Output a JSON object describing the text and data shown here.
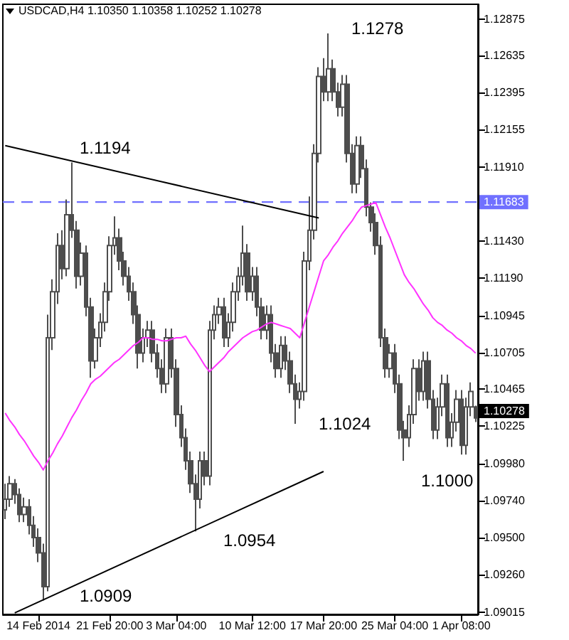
{
  "chart_data": {
    "type": "candlestick",
    "title": "USDCAD,H4 1.10350 1.10358 1.10252 1.10278",
    "categories": [
      null,
      null,
      null,
      null,
      null,
      null,
      null,
      "14 Feb 2014",
      null,
      null,
      null,
      null,
      null,
      null,
      null,
      null,
      null,
      null,
      null,
      null,
      null,
      null,
      "21 Feb 20:00",
      null,
      null,
      null,
      null,
      null,
      null,
      null,
      null,
      null,
      null,
      null,
      null,
      null,
      "3 Mar 04:00",
      null,
      null,
      null,
      null,
      null,
      null,
      null,
      null,
      null,
      null,
      null,
      null,
      null,
      null,
      null,
      "10 Mar 12:00",
      null,
      null,
      null,
      null,
      null,
      null,
      null,
      null,
      null,
      null,
      null,
      null,
      null,
      null,
      "17 Mar 20:00",
      null,
      null,
      null,
      null,
      null,
      null,
      null,
      null,
      null,
      null,
      null,
      null,
      null,
      null,
      "25 Mar 04:00",
      null,
      null,
      null,
      null,
      null,
      null,
      null,
      null,
      null,
      null,
      null,
      null,
      null,
      "1 Apr 08:00",
      null,
      null,
      null
    ],
    "ylim": [
      1.09,
      1.1297
    ],
    "yticks": [
      {
        "value": 1.09015,
        "label": "1.09015"
      },
      {
        "value": 1.0926,
        "label": "1.09260"
      },
      {
        "value": 1.095,
        "label": "1.09500"
      },
      {
        "value": 1.0974,
        "label": "1.09740"
      },
      {
        "value": 1.0998,
        "label": "1.09980"
      },
      {
        "value": 1.10225,
        "label": "1.10225"
      },
      {
        "value": 1.10465,
        "label": "1.10465"
      },
      {
        "value": 1.10705,
        "label": "1.10705"
      },
      {
        "value": 1.10945,
        "label": "1.10945"
      },
      {
        "value": 1.1119,
        "label": "1.11190"
      },
      {
        "value": 1.1143,
        "label": "1.11430"
      },
      {
        "value": 1.1191,
        "label": "1.11910"
      },
      {
        "value": 1.12155,
        "label": "1.12155"
      },
      {
        "value": 1.12395,
        "label": "1.12395"
      },
      {
        "value": 1.12635,
        "label": "1.12635"
      },
      {
        "value": 1.12875,
        "label": "1.12875"
      }
    ],
    "color": "#4d4d4d",
    "ohlc": [
      [
        1.0968,
        1.0985,
        1.0962,
        1.0975
      ],
      [
        1.0975,
        1.099,
        1.097,
        1.0985
      ],
      [
        1.0985,
        1.0988,
        1.0972,
        1.0978
      ],
      [
        1.0978,
        1.0982,
        1.096,
        1.0965
      ],
      [
        1.0965,
        1.0976,
        1.096,
        1.097
      ],
      [
        1.097,
        1.0975,
        1.0952,
        1.0958
      ],
      [
        1.0958,
        1.0964,
        1.0944,
        1.095
      ],
      [
        1.095,
        1.0956,
        1.0934,
        1.094
      ],
      [
        1.094,
        1.0946,
        1.0909,
        1.0918
      ],
      [
        1.0918,
        1.1095,
        1.0915,
        1.108
      ],
      [
        1.108,
        1.1118,
        1.1072,
        1.111
      ],
      [
        1.111,
        1.1148,
        1.1102,
        1.114
      ],
      [
        1.114,
        1.115,
        1.1118,
        1.1125
      ],
      [
        1.1125,
        1.117,
        1.112,
        1.116
      ],
      [
        1.116,
        1.1194,
        1.1145,
        1.115
      ],
      [
        1.115,
        1.1156,
        1.1112,
        1.112
      ],
      [
        1.112,
        1.1142,
        1.1114,
        1.1135
      ],
      [
        1.1135,
        1.114,
        1.1094,
        1.11
      ],
      [
        1.11,
        1.1106,
        1.1054,
        1.1065
      ],
      [
        1.1065,
        1.1086,
        1.106,
        1.108
      ],
      [
        1.108,
        1.1096,
        1.1074,
        1.109
      ],
      [
        1.109,
        1.1116,
        1.1084,
        1.111
      ],
      [
        1.111,
        1.1146,
        1.1104,
        1.114
      ],
      [
        1.114,
        1.1159,
        1.1134,
        1.1145
      ],
      [
        1.1145,
        1.1151,
        1.1124,
        1.113
      ],
      [
        1.113,
        1.1136,
        1.1114,
        1.112
      ],
      [
        1.112,
        1.1126,
        1.1104,
        1.111
      ],
      [
        1.111,
        1.1116,
        1.1089,
        1.1095
      ],
      [
        1.1095,
        1.1101,
        1.106,
        1.107
      ],
      [
        1.107,
        1.1086,
        1.1064,
        1.108
      ],
      [
        1.108,
        1.1091,
        1.1074,
        1.1085
      ],
      [
        1.1085,
        1.1091,
        1.1064,
        1.107
      ],
      [
        1.107,
        1.1076,
        1.1054,
        1.106
      ],
      [
        1.106,
        1.1066,
        1.1044,
        1.105
      ],
      [
        1.105,
        1.1086,
        1.1044,
        1.108
      ],
      [
        1.108,
        1.1086,
        1.1054,
        1.106
      ],
      [
        1.106,
        1.1066,
        1.1022,
        1.103
      ],
      [
        1.103,
        1.1036,
        1.1009,
        1.1015
      ],
      [
        1.1015,
        1.1021,
        1.0994,
        1.1
      ],
      [
        1.1,
        1.1006,
        1.0979,
        1.0985
      ],
      [
        1.0985,
        1.0991,
        1.0954,
        1.0975
      ],
      [
        1.0975,
        1.1006,
        1.0969,
        1.1
      ],
      [
        1.1,
        1.1006,
        1.0984,
        1.099
      ],
      [
        1.099,
        1.1091,
        1.0984,
        1.1085
      ],
      [
        1.1085,
        1.1101,
        1.1079,
        1.1095
      ],
      [
        1.1095,
        1.1106,
        1.1089,
        1.11
      ],
      [
        1.11,
        1.1106,
        1.1074,
        1.108
      ],
      [
        1.108,
        1.1096,
        1.1074,
        1.109
      ],
      [
        1.109,
        1.1116,
        1.1084,
        1.111
      ],
      [
        1.111,
        1.1126,
        1.1104,
        1.112
      ],
      [
        1.112,
        1.1153,
        1.1114,
        1.1135
      ],
      [
        1.1135,
        1.1141,
        1.1104,
        1.111
      ],
      [
        1.111,
        1.1126,
        1.1104,
        1.112
      ],
      [
        1.112,
        1.1126,
        1.1094,
        1.11
      ],
      [
        1.11,
        1.1106,
        1.1079,
        1.1085
      ],
      [
        1.1085,
        1.1101,
        1.1079,
        1.1095
      ],
      [
        1.1095,
        1.1101,
        1.1064,
        1.107
      ],
      [
        1.107,
        1.1076,
        1.1054,
        1.106
      ],
      [
        1.106,
        1.1081,
        1.1054,
        1.1075
      ],
      [
        1.1075,
        1.1081,
        1.1059,
        1.1065
      ],
      [
        1.1065,
        1.1071,
        1.1044,
        1.105
      ],
      [
        1.105,
        1.1056,
        1.1024,
        1.104
      ],
      [
        1.104,
        1.1051,
        1.1034,
        1.1045
      ],
      [
        1.1045,
        1.1136,
        1.1039,
        1.113
      ],
      [
        1.113,
        1.1172,
        1.1124,
        1.115
      ],
      [
        1.115,
        1.1206,
        1.1144,
        1.12
      ],
      [
        1.12,
        1.1256,
        1.1194,
        1.125
      ],
      [
        1.125,
        1.1262,
        1.1234,
        1.124
      ],
      [
        1.124,
        1.1278,
        1.1234,
        1.1255
      ],
      [
        1.1255,
        1.1261,
        1.1234,
        1.124
      ],
      [
        1.124,
        1.1246,
        1.1224,
        1.123
      ],
      [
        1.123,
        1.1251,
        1.1224,
        1.1245
      ],
      [
        1.1245,
        1.1251,
        1.1194,
        1.12
      ],
      [
        1.12,
        1.1206,
        1.1174,
        1.118
      ],
      [
        1.118,
        1.1211,
        1.1174,
        1.1205
      ],
      [
        1.1205,
        1.1211,
        1.1184,
        1.119
      ],
      [
        1.119,
        1.1196,
        1.1159,
        1.1165
      ],
      [
        1.1165,
        1.1168,
        1.1149,
        1.1155
      ],
      [
        1.1155,
        1.1161,
        1.1134,
        1.114
      ],
      [
        1.114,
        1.1146,
        1.1074,
        1.108
      ],
      [
        1.108,
        1.1086,
        1.1054,
        1.106
      ],
      [
        1.106,
        1.1076,
        1.1054,
        1.107
      ],
      [
        1.107,
        1.1076,
        1.1044,
        1.105
      ],
      [
        1.105,
        1.1056,
        1.1014,
        1.102
      ],
      [
        1.102,
        1.1026,
        1.1,
        1.1015
      ],
      [
        1.1015,
        1.1036,
        1.1009,
        1.103
      ],
      [
        1.103,
        1.1066,
        1.1024,
        1.106
      ],
      [
        1.106,
        1.1066,
        1.1039,
        1.1045
      ],
      [
        1.1045,
        1.1071,
        1.1039,
        1.1065
      ],
      [
        1.1065,
        1.1071,
        1.1034,
        1.104
      ],
      [
        1.104,
        1.1046,
        1.1014,
        1.102
      ],
      [
        1.102,
        1.1041,
        1.1014,
        1.1035
      ],
      [
        1.1035,
        1.1056,
        1.1029,
        1.105
      ],
      [
        1.105,
        1.1056,
        1.1009,
        1.1015
      ],
      [
        1.1015,
        1.1031,
        1.1009,
        1.1025
      ],
      [
        1.1025,
        1.1046,
        1.1019,
        1.104
      ],
      [
        1.104,
        1.1046,
        1.1004,
        1.101
      ],
      [
        1.101,
        1.1041,
        1.1004,
        1.1035
      ],
      [
        1.1035,
        1.1051,
        1.1029,
        1.1045
      ],
      [
        1.1035,
        1.10358,
        1.10252,
        1.10278
      ]
    ],
    "series": [
      {
        "type": "line",
        "color": "#ff33ff",
        "values": [
          1.1031,
          1.1026,
          1.1022,
          1.1017,
          1.1013,
          1.1008,
          1.1003,
          1.0999,
          1.0994,
          1.1,
          1.1005,
          1.1011,
          1.1016,
          1.1022,
          1.1028,
          1.1033,
          1.1039,
          1.1044,
          1.105,
          1.1053,
          1.1055,
          1.1058,
          1.1061,
          1.1064,
          1.1066,
          1.1069,
          1.1072,
          1.1075,
          1.1077,
          1.108,
          1.108,
          1.1079,
          1.1079,
          1.1078,
          1.1078,
          1.1079,
          1.108,
          1.108,
          1.1081,
          1.1076,
          1.1072,
          1.1067,
          1.1062,
          1.1058,
          1.1061,
          1.1064,
          1.1067,
          1.1071,
          1.1074,
          1.1077,
          1.108,
          1.1082,
          1.1084,
          1.1085,
          1.1087,
          1.1089,
          1.109,
          1.1089,
          1.1088,
          1.1087,
          1.1086,
          1.1083,
          1.108,
          1.109,
          1.11,
          1.111,
          1.112,
          1.113,
          1.1134,
          1.1139,
          1.1143,
          1.1148,
          1.1152,
          1.1156,
          1.1161,
          1.1165,
          1.1166,
          1.1167,
          1.1168,
          1.116,
          1.1152,
          1.1145,
          1.1137,
          1.1129,
          1.1121,
          1.1116,
          1.1112,
          1.1107,
          1.1102,
          1.1098,
          1.1093,
          1.109,
          1.1088,
          1.1085,
          1.1083,
          1.108,
          1.1078,
          1.1075,
          1.1073,
          1.107
        ]
      },
      {
        "type": "line",
        "color": "#000000",
        "values": [
          1.1205,
          null,
          null,
          null,
          null,
          null,
          null,
          null,
          null,
          null,
          null,
          null,
          null,
          null,
          null,
          null,
          null,
          null,
          null,
          null,
          null,
          null,
          null,
          null,
          null,
          null,
          null,
          null,
          null,
          null,
          null,
          null,
          null,
          null,
          null,
          null,
          null,
          null,
          null,
          null,
          null,
          null,
          null,
          null,
          null,
          null,
          null,
          null,
          null,
          null,
          null,
          null,
          null,
          null,
          null,
          null,
          null,
          null,
          null,
          null,
          null,
          null,
          null,
          null,
          null,
          null,
          1.1158,
          null,
          null,
          null,
          null,
          null,
          null,
          null,
          null,
          null,
          null,
          null,
          null,
          null,
          null,
          null,
          null,
          null,
          null,
          null,
          null,
          null,
          null,
          null,
          null,
          null,
          null,
          null,
          null,
          null,
          null,
          null,
          null,
          null
        ]
      },
      {
        "type": "line",
        "color": "#000000",
        "values": [
          null,
          null,
          1.0901,
          null,
          null,
          null,
          null,
          null,
          null,
          null,
          null,
          null,
          null,
          null,
          null,
          null,
          null,
          null,
          null,
          null,
          null,
          null,
          null,
          null,
          null,
          null,
          null,
          null,
          null,
          null,
          null,
          null,
          null,
          null,
          null,
          null,
          null,
          null,
          null,
          null,
          null,
          null,
          null,
          null,
          null,
          null,
          null,
          null,
          null,
          null,
          null,
          null,
          null,
          null,
          null,
          null,
          null,
          null,
          null,
          null,
          null,
          null,
          null,
          null,
          null,
          null,
          null,
          1.0993,
          null,
          null,
          null,
          null,
          null,
          null,
          null,
          null,
          null,
          null,
          null,
          null,
          null,
          null,
          null,
          null,
          null,
          null,
          null,
          null,
          null,
          null,
          null,
          null,
          null,
          null,
          null,
          null,
          null,
          null,
          null,
          null
        ]
      }
    ],
    "ref_lines": [
      {
        "axis": "y",
        "value": 1.11683,
        "label": "1.11683",
        "color": "#7070ff",
        "line_style": "dashed"
      }
    ],
    "annotations": [
      "1.1194",
      "1.1278",
      "1.1024",
      "1.1000",
      "1.0954",
      "1.0909",
      "1.10278"
    ]
  }
}
